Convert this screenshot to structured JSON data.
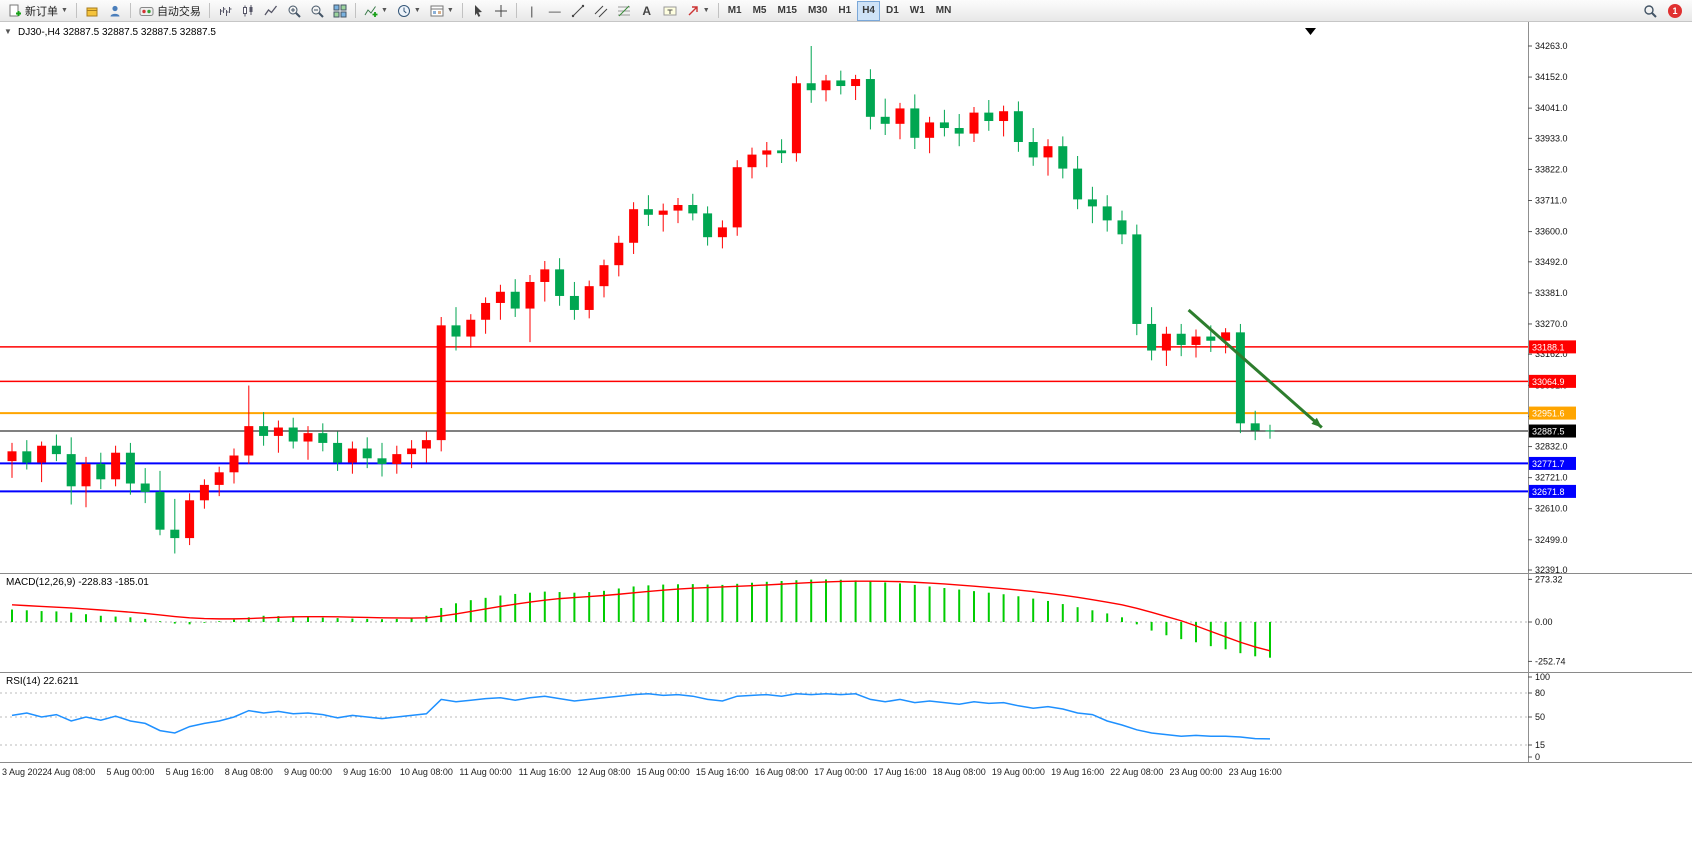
{
  "toolbar": {
    "new_order_label": "新订单",
    "autotrade_label": "自动交易",
    "timeframes": [
      "M1",
      "M5",
      "M15",
      "M30",
      "H1",
      "H4",
      "D1",
      "W1",
      "MN"
    ],
    "active_timeframe": "H4",
    "notification_badge": "1"
  },
  "chart": {
    "title": "DJ30-,H4 32887.5 32887.5 32887.5 32887.5"
  },
  "chart_data": {
    "type": "candlestick",
    "symbol": "DJ30-",
    "timeframe": "H4",
    "up_color": "#ff0000",
    "down_color": "#00a651",
    "current_price": 32887.5,
    "price_axis": {
      "min": 32391,
      "max": 34263,
      "ticks": [
        34263,
        34152,
        34041,
        33933,
        33822,
        33711,
        33600,
        33492,
        33381,
        33270,
        33162,
        33051,
        32940,
        32832,
        32721,
        32610,
        32499,
        32391
      ]
    },
    "hlines": [
      {
        "price": 33188.1,
        "color": "#ff0000",
        "width": 1.4
      },
      {
        "price": 33064.9,
        "color": "#ff0000",
        "width": 1.4
      },
      {
        "price": 32951.6,
        "color": "#ffa500",
        "width": 2
      },
      {
        "price": 32887.5,
        "color": "#000000",
        "width": 1
      },
      {
        "price": 32771.7,
        "color": "#0000ff",
        "width": 2
      },
      {
        "price": 32671.8,
        "color": "#0000ff",
        "width": 2
      }
    ],
    "trend_arrow": {
      "from_index": 79.5,
      "from_price": 33320,
      "to_index": 88.5,
      "to_price": 32900,
      "color": "#2d7d2d"
    },
    "candles": [
      [
        32780,
        32845,
        32720,
        32815
      ],
      [
        32815,
        32855,
        32750,
        32775
      ],
      [
        32775,
        32850,
        32705,
        32835
      ],
      [
        32835,
        32875,
        32780,
        32805
      ],
      [
        32805,
        32865,
        32625,
        32690
      ],
      [
        32690,
        32795,
        32615,
        32770
      ],
      [
        32770,
        32810,
        32680,
        32715
      ],
      [
        32715,
        32835,
        32690,
        32810
      ],
      [
        32810,
        32845,
        32660,
        32700
      ],
      [
        32700,
        32755,
        32630,
        32670
      ],
      [
        32670,
        32745,
        32515,
        32535
      ],
      [
        32535,
        32645,
        32450,
        32505
      ],
      [
        32505,
        32665,
        32480,
        32640
      ],
      [
        32640,
        32715,
        32610,
        32695
      ],
      [
        32695,
        32760,
        32655,
        32740
      ],
      [
        32740,
        32825,
        32700,
        32800
      ],
      [
        32800,
        33050,
        32770,
        32905
      ],
      [
        32905,
        32955,
        32835,
        32870
      ],
      [
        32870,
        32925,
        32810,
        32900
      ],
      [
        32900,
        32935,
        32825,
        32850
      ],
      [
        32850,
        32905,
        32785,
        32880
      ],
      [
        32880,
        32915,
        32815,
        32845
      ],
      [
        32845,
        32885,
        32745,
        32775
      ],
      [
        32775,
        32850,
        32735,
        32825
      ],
      [
        32825,
        32865,
        32755,
        32790
      ],
      [
        32790,
        32845,
        32725,
        32770
      ],
      [
        32770,
        32835,
        32735,
        32805
      ],
      [
        32805,
        32855,
        32755,
        32825
      ],
      [
        32825,
        32885,
        32775,
        32855
      ],
      [
        32855,
        33295,
        32815,
        33265
      ],
      [
        33265,
        33330,
        33175,
        33225
      ],
      [
        33225,
        33305,
        33185,
        33285
      ],
      [
        33285,
        33365,
        33235,
        33345
      ],
      [
        33345,
        33410,
        33285,
        33385
      ],
      [
        33385,
        33430,
        33295,
        33325
      ],
      [
        33325,
        33445,
        33205,
        33420
      ],
      [
        33420,
        33495,
        33350,
        33465
      ],
      [
        33465,
        33505,
        33335,
        33370
      ],
      [
        33370,
        33420,
        33285,
        33320
      ],
      [
        33320,
        33425,
        33290,
        33405
      ],
      [
        33405,
        33500,
        33365,
        33480
      ],
      [
        33480,
        33585,
        33440,
        33560
      ],
      [
        33560,
        33705,
        33520,
        33680
      ],
      [
        33680,
        33730,
        33620,
        33660
      ],
      [
        33660,
        33700,
        33600,
        33675
      ],
      [
        33675,
        33720,
        33630,
        33695
      ],
      [
        33695,
        33735,
        33640,
        33665
      ],
      [
        33665,
        33690,
        33550,
        33580
      ],
      [
        33580,
        33640,
        33540,
        33615
      ],
      [
        33615,
        33855,
        33585,
        33830
      ],
      [
        33830,
        33900,
        33790,
        33875
      ],
      [
        33875,
        33920,
        33830,
        33890
      ],
      [
        33890,
        33930,
        33845,
        33880
      ],
      [
        33880,
        34155,
        33850,
        34130
      ],
      [
        34130,
        34263,
        34060,
        34105
      ],
      [
        34105,
        34160,
        34065,
        34140
      ],
      [
        34140,
        34175,
        34090,
        34120
      ],
      [
        34120,
        34160,
        34070,
        34145
      ],
      [
        34145,
        34180,
        33965,
        34010
      ],
      [
        34010,
        34075,
        33945,
        33985
      ],
      [
        33985,
        34060,
        33930,
        34040
      ],
      [
        34040,
        34090,
        33895,
        33935
      ],
      [
        33935,
        34010,
        33880,
        33990
      ],
      [
        33990,
        34035,
        33940,
        33970
      ],
      [
        33970,
        34020,
        33905,
        33950
      ],
      [
        33950,
        34045,
        33920,
        34025
      ],
      [
        34025,
        34070,
        33960,
        33995
      ],
      [
        33995,
        34050,
        33940,
        34030
      ],
      [
        34030,
        34065,
        33885,
        33920
      ],
      [
        33920,
        33970,
        33835,
        33865
      ],
      [
        33865,
        33930,
        33800,
        33905
      ],
      [
        33905,
        33940,
        33790,
        33825
      ],
      [
        33825,
        33870,
        33680,
        33715
      ],
      [
        33715,
        33760,
        33630,
        33690
      ],
      [
        33690,
        33730,
        33600,
        33640
      ],
      [
        33640,
        33675,
        33555,
        33590
      ],
      [
        33590,
        33625,
        33230,
        33270
      ],
      [
        33270,
        33330,
        33140,
        33175
      ],
      [
        33175,
        33260,
        33120,
        33235
      ],
      [
        33235,
        33270,
        33155,
        33195
      ],
      [
        33195,
        33250,
        33150,
        33225
      ],
      [
        33225,
        33265,
        33170,
        33210
      ],
      [
        33210,
        33255,
        33165,
        33240
      ],
      [
        33240,
        33270,
        32880,
        32915
      ],
      [
        32915,
        32960,
        32855,
        32890
      ],
      [
        32890,
        32910,
        32860,
        32887.5
      ]
    ],
    "macd": {
      "label": "MACD(12,26,9) -228.83 -185.01",
      "hist_color": "#00cc00",
      "signal_color": "#ff0000",
      "axis": [
        273.32,
        0,
        -252.74
      ],
      "histogram": [
        80,
        75,
        70,
        68,
        60,
        50,
        40,
        35,
        30,
        20,
        5,
        -10,
        -15,
        -5,
        5,
        15,
        30,
        40,
        38,
        35,
        32,
        28,
        25,
        22,
        20,
        18,
        20,
        25,
        40,
        90,
        120,
        140,
        155,
        170,
        180,
        188,
        195,
        192,
        188,
        192,
        200,
        215,
        228,
        235,
        240,
        242,
        243,
        240,
        238,
        245,
        252,
        258,
        263,
        268,
        272,
        273,
        271,
        267,
        262,
        254,
        248,
        238,
        228,
        218,
        208,
        198,
        188,
        178,
        165,
        150,
        135,
        115,
        95,
        75,
        55,
        30,
        -15,
        -55,
        -85,
        -110,
        -130,
        -155,
        -175,
        -200,
        -220,
        -229
      ],
      "signal": [
        110,
        105,
        100,
        95,
        90,
        84,
        77,
        70,
        63,
        55,
        45,
        35,
        27,
        22,
        20,
        20,
        22,
        26,
        30,
        33,
        34,
        34,
        33,
        31,
        29,
        27,
        26,
        25,
        27,
        38,
        52,
        68,
        84,
        100,
        114,
        128,
        140,
        150,
        157,
        163,
        170,
        178,
        187,
        196,
        204,
        211,
        217,
        221,
        225,
        229,
        233,
        238,
        243,
        248,
        253,
        257,
        260,
        262,
        262,
        261,
        259,
        255,
        250,
        244,
        237,
        230,
        222,
        214,
        205,
        195,
        184,
        172,
        158,
        143,
        127,
        110,
        88,
        62,
        35,
        8,
        -25,
        -60,
        -95,
        -130,
        -160,
        -185
      ]
    },
    "rsi": {
      "label": "RSI(14) 22.6211",
      "color": "#1e90ff",
      "axis": [
        100,
        80,
        50,
        15,
        0
      ],
      "levels": [
        80,
        50,
        15
      ],
      "values": [
        52,
        55,
        50,
        53,
        45,
        50,
        46,
        51,
        45,
        42,
        33,
        30,
        38,
        42,
        45,
        50,
        58,
        55,
        57,
        54,
        55,
        53,
        49,
        52,
        50,
        48,
        50,
        52,
        54,
        72,
        69,
        71,
        73,
        74,
        71,
        74,
        76,
        73,
        70,
        72,
        74,
        76,
        78,
        79,
        77,
        78,
        76,
        72,
        70,
        76,
        77,
        78,
        76,
        79,
        78,
        79,
        78,
        79,
        72,
        69,
        72,
        68,
        70,
        68,
        66,
        69,
        67,
        68,
        64,
        61,
        63,
        60,
        55,
        53,
        45,
        40,
        34,
        30,
        28,
        26,
        27,
        26,
        26,
        25,
        23,
        22.6
      ]
    },
    "time_ticks": [
      "3 Aug 2022",
      "4 Aug 08:00",
      "5 Aug 00:00",
      "5 Aug 16:00",
      "8 Aug 08:00",
      "9 Aug 00:00",
      "9 Aug 16:00",
      "10 Aug 08:00",
      "11 Aug 00:00",
      "11 Aug 16:00",
      "12 Aug 08:00",
      "15 Aug 00:00",
      "15 Aug 16:00",
      "16 Aug 08:00",
      "17 Aug 00:00",
      "17 Aug 16:00",
      "18 Aug 08:00",
      "19 Aug 00:00",
      "19 Aug 16:00",
      "22 Aug 08:00",
      "23 Aug 00:00",
      "23 Aug 16:00"
    ]
  }
}
